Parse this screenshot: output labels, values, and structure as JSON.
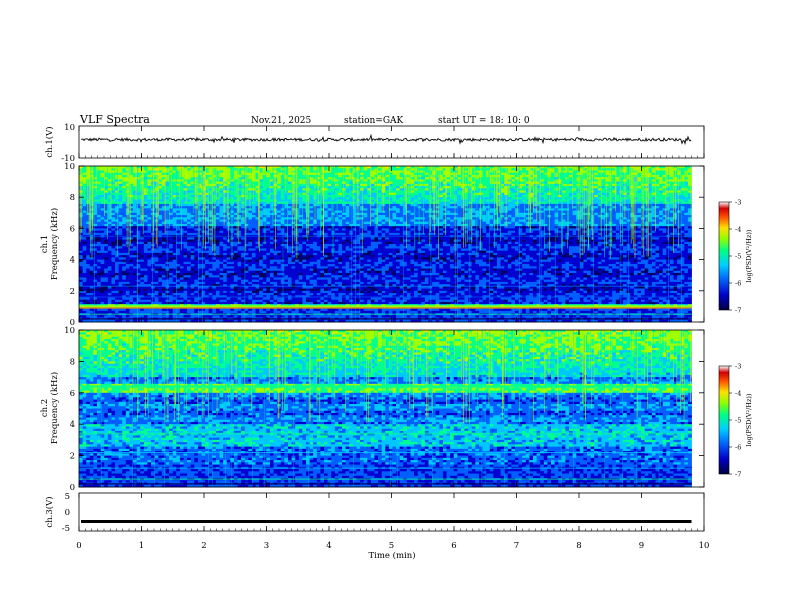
{
  "header": {
    "title": "VLF  Spectra",
    "date": "Nov.21, 2025",
    "station": "station=GAK",
    "start_ut": "start  UT  =    18: 10: 0"
  },
  "chart_data": [
    {
      "type": "line",
      "name": "ch1-waveform",
      "ylabel": "ch.1(V)",
      "ylim": [
        -10,
        10
      ],
      "yticks": [
        "10",
        "-10"
      ],
      "baseline_value": 1.5
    },
    {
      "type": "heatmap",
      "name": "ch1-spectrogram",
      "ylabel_line1": "ch.1",
      "ylabel_line2": "Frequency  (kHz)",
      "ylim": [
        0,
        10
      ],
      "yticks": [
        "0",
        "2",
        "4",
        "6",
        "8",
        "10"
      ],
      "xlim": [
        0,
        10
      ],
      "colorbar": {
        "label": "log(PSD(V²/Hz))",
        "range": [
          -7,
          -3
        ],
        "ticks": [
          "-3",
          "-4",
          "-5",
          "-6",
          "-7"
        ]
      }
    },
    {
      "type": "heatmap",
      "name": "ch2-spectrogram",
      "ylabel_line1": "ch.2",
      "ylabel_line2": "Frequency  (kHz)",
      "ylim": [
        0,
        10
      ],
      "yticks": [
        "0",
        "2",
        "4",
        "6",
        "8",
        "10"
      ],
      "xlim": [
        0,
        10
      ],
      "colorbar": {
        "label": "log(PSD(V²/Hz))",
        "range": [
          -7,
          -3
        ],
        "ticks": [
          "-3",
          "-4",
          "-5",
          "-6",
          "-7"
        ]
      }
    },
    {
      "type": "line",
      "name": "ch3-waveform",
      "ylabel": "ch.3(V)",
      "ylim": [
        -5,
        5
      ],
      "yticks": [
        "5",
        "0",
        "-5"
      ],
      "baseline_value": -2.5,
      "xlabel": "Time  (min)",
      "xlim": [
        0,
        10
      ],
      "xticks": [
        "0",
        "1",
        "2",
        "3",
        "4",
        "5",
        "6",
        "7",
        "8",
        "9",
        "10"
      ],
      "data_end_min": 9.8
    }
  ],
  "colors": {
    "ch1_spectrum_scale": [
      "#000060",
      "#0000d0",
      "#0060ff",
      "#00c8ff",
      "#00ff90",
      "#a0ff00",
      "#ffe000",
      "#ff6000",
      "#e00000"
    ],
    "ch2_spectrum_scale": [
      "#000060",
      "#0000d0",
      "#0060ff",
      "#00c8ff",
      "#00ff90",
      "#a0ff00",
      "#ffe000",
      "#ff6000",
      "#e00000"
    ]
  }
}
